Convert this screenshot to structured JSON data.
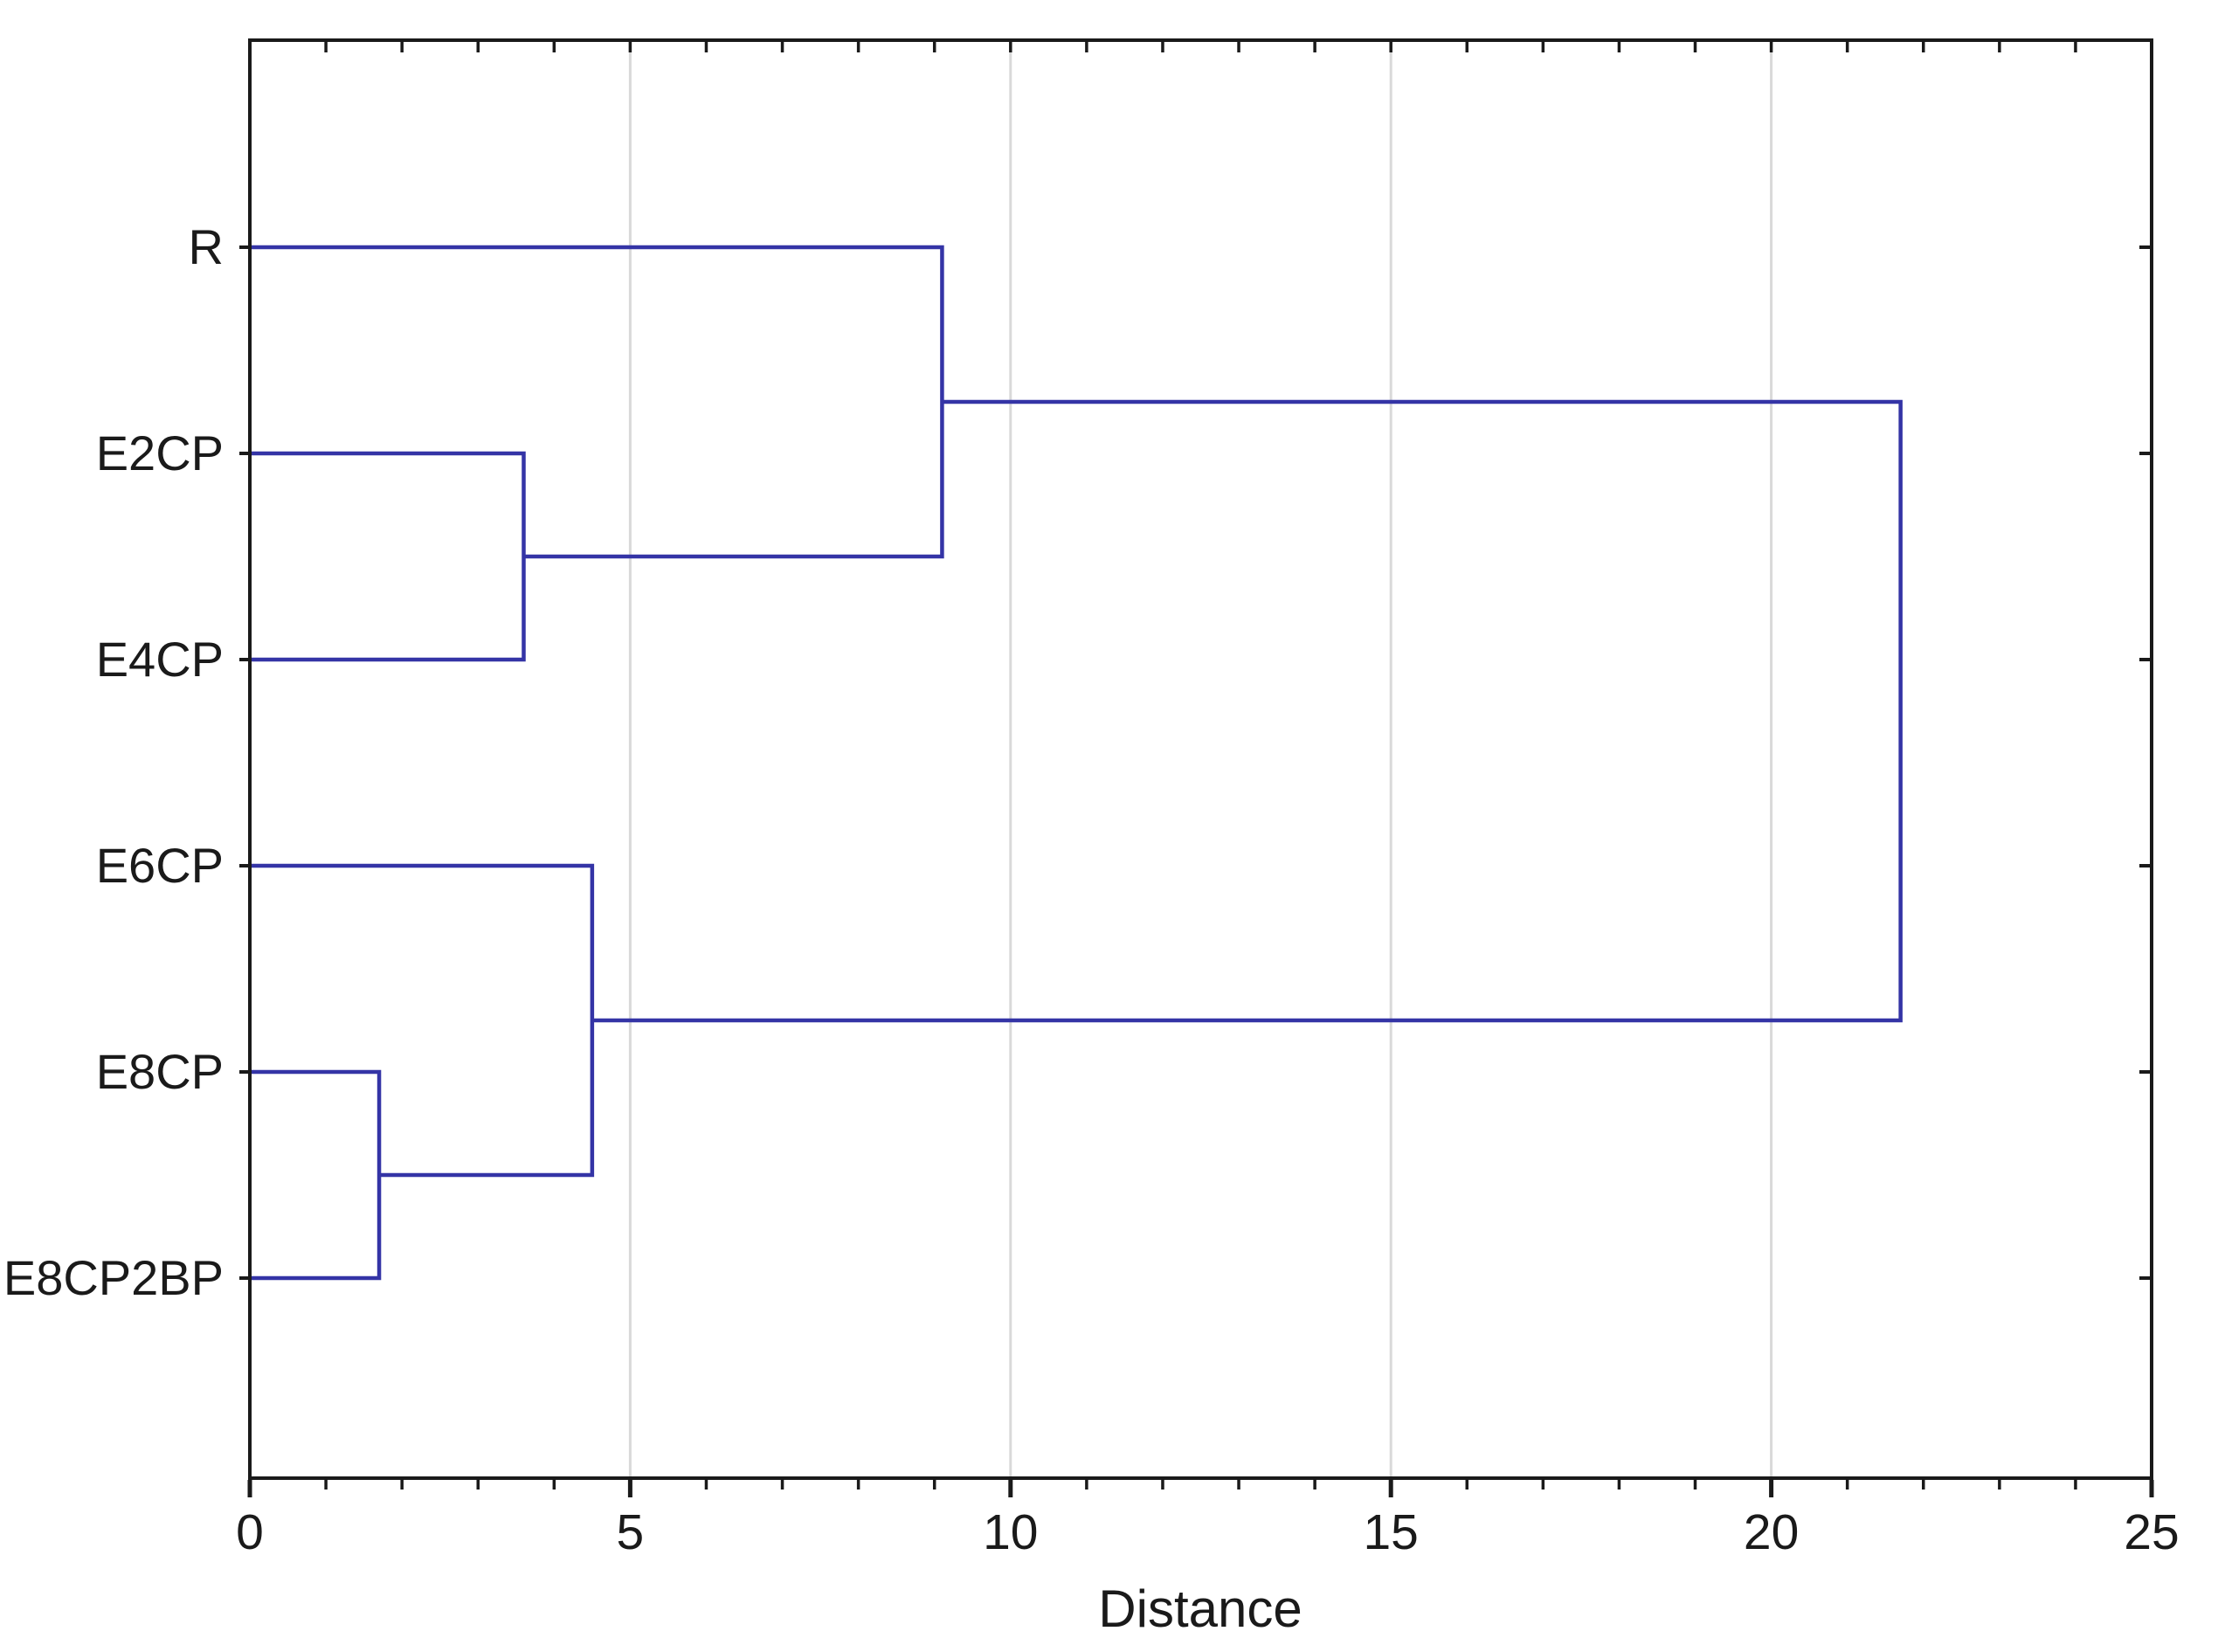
{
  "chart_data": {
    "type": "dendrogram",
    "orientation": "horizontal",
    "xlabel": "Distance",
    "xlim": [
      0,
      25
    ],
    "x_major_ticks": [
      0,
      5,
      10,
      15,
      20,
      25
    ],
    "x_minor_tick_step": 1,
    "grid_vertical_at": [
      5,
      10,
      15,
      20
    ],
    "legend": "none",
    "leaves": [
      "R",
      "E2CP",
      "E4CP",
      "E6CP",
      "E8CP",
      "E8CP2BP"
    ],
    "merges": [
      {
        "id": "m1",
        "children": [
          "E8CP",
          "E8CP2BP"
        ],
        "distance": 1.7
      },
      {
        "id": "m2",
        "children": [
          "E2CP",
          "E4CP"
        ],
        "distance": 3.6
      },
      {
        "id": "m3",
        "children": [
          "E6CP",
          "m1"
        ],
        "distance": 4.5
      },
      {
        "id": "m4",
        "children": [
          "R",
          "m2"
        ],
        "distance": 9.1
      },
      {
        "id": "m5",
        "children": [
          "m4",
          "m3"
        ],
        "distance": 21.7
      }
    ],
    "colors": {
      "link": "#3434a6",
      "axis": "#1a1a1a",
      "grid": "#d9d9d9",
      "text": "#1a1a1a",
      "background": "#ffffff"
    }
  }
}
